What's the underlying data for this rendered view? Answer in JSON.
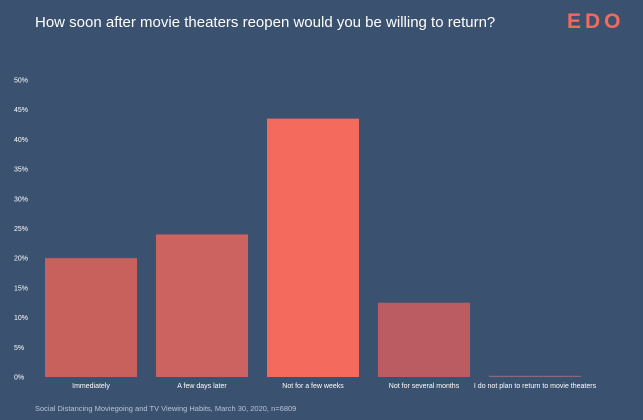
{
  "header": {
    "title": "How soon after movie theaters reopen would you be willing to return?",
    "logo": "EDO"
  },
  "footer": {
    "source": "Social Distancing Moviegoing and TV Viewing Habits, March 30, 2020, n=6809"
  },
  "chart_data": {
    "type": "bar",
    "title": "How soon after movie theaters reopen would you be willing to return?",
    "categories": [
      "Immediately",
      "A few days later",
      "Not for a few weeks",
      "Not for several months",
      "I do not plan to return to movie theaters"
    ],
    "values": [
      20,
      24,
      43.5,
      12.5,
      0.2
    ],
    "yticks": [
      "0%",
      "5%",
      "10%",
      "15%",
      "20%",
      "25%",
      "30%",
      "35%",
      "40%",
      "45%",
      "50%"
    ],
    "ylim": [
      0,
      50
    ],
    "grid": false,
    "legend": "none",
    "colors": [
      "#c8615c",
      "#cc6360",
      "#f46b5d",
      "#bb5c62",
      "#8a6a78"
    ]
  }
}
